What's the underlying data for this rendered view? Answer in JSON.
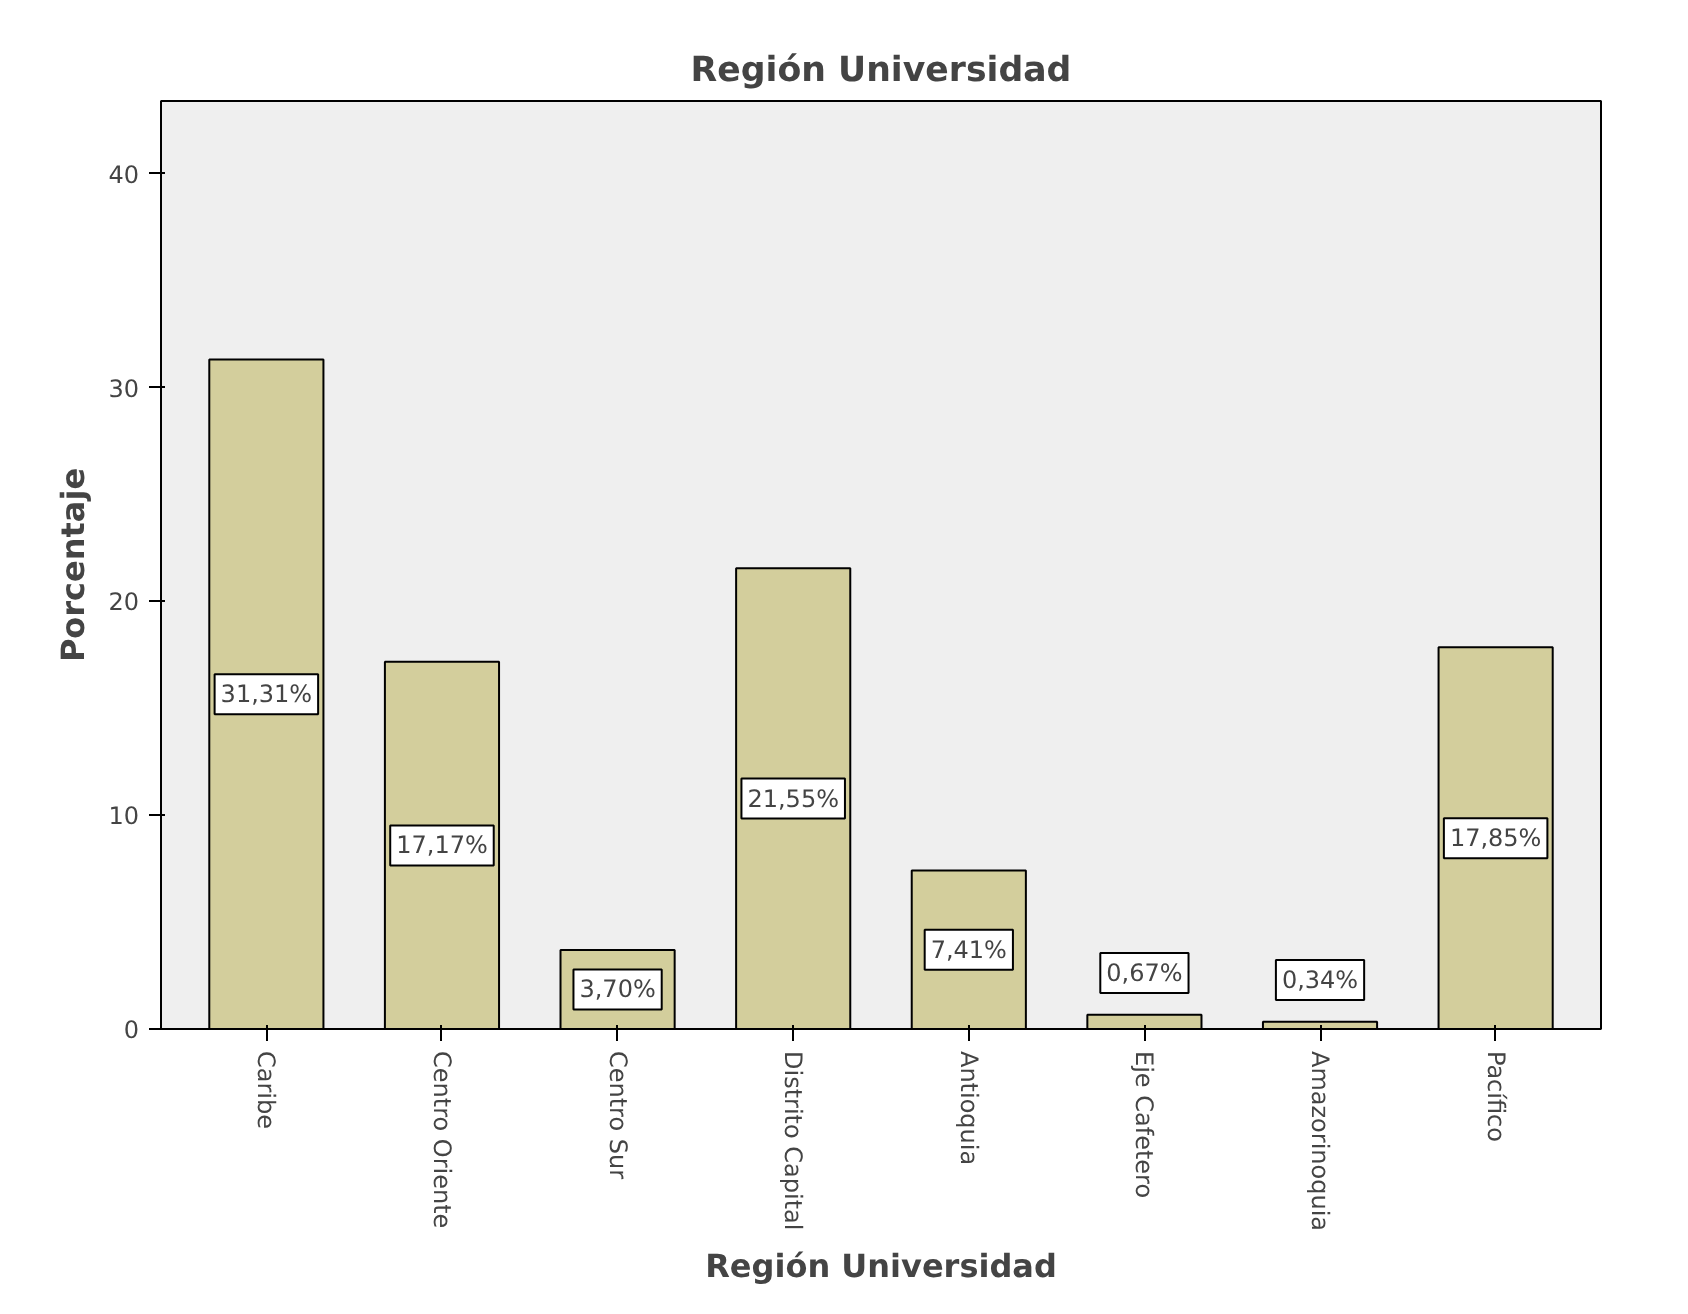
{
  "chart_data": {
    "type": "bar",
    "title": "Región Universidad",
    "xlabel": "Región Universidad",
    "ylabel": "Porcentaje",
    "categories": [
      "Caribe",
      "Centro Oriente",
      "Centro Sur",
      "Distrito Capital",
      "Antioquia",
      "Eje Cafetero",
      "Amazorinoquia",
      "Pacífico"
    ],
    "values": [
      31.31,
      17.17,
      3.7,
      21.55,
      7.41,
      0.67,
      0.34,
      17.85
    ],
    "value_labels": [
      "31,31%",
      "17,17%",
      "3,70%",
      "21,55%",
      "7,41%",
      "0,67%",
      "0,34%",
      "17,85%"
    ],
    "color": "#d3ce9c",
    "ylim": [
      0,
      43.4
    ],
    "yticks": [
      0,
      10,
      20,
      30,
      40
    ],
    "grid": false
  }
}
